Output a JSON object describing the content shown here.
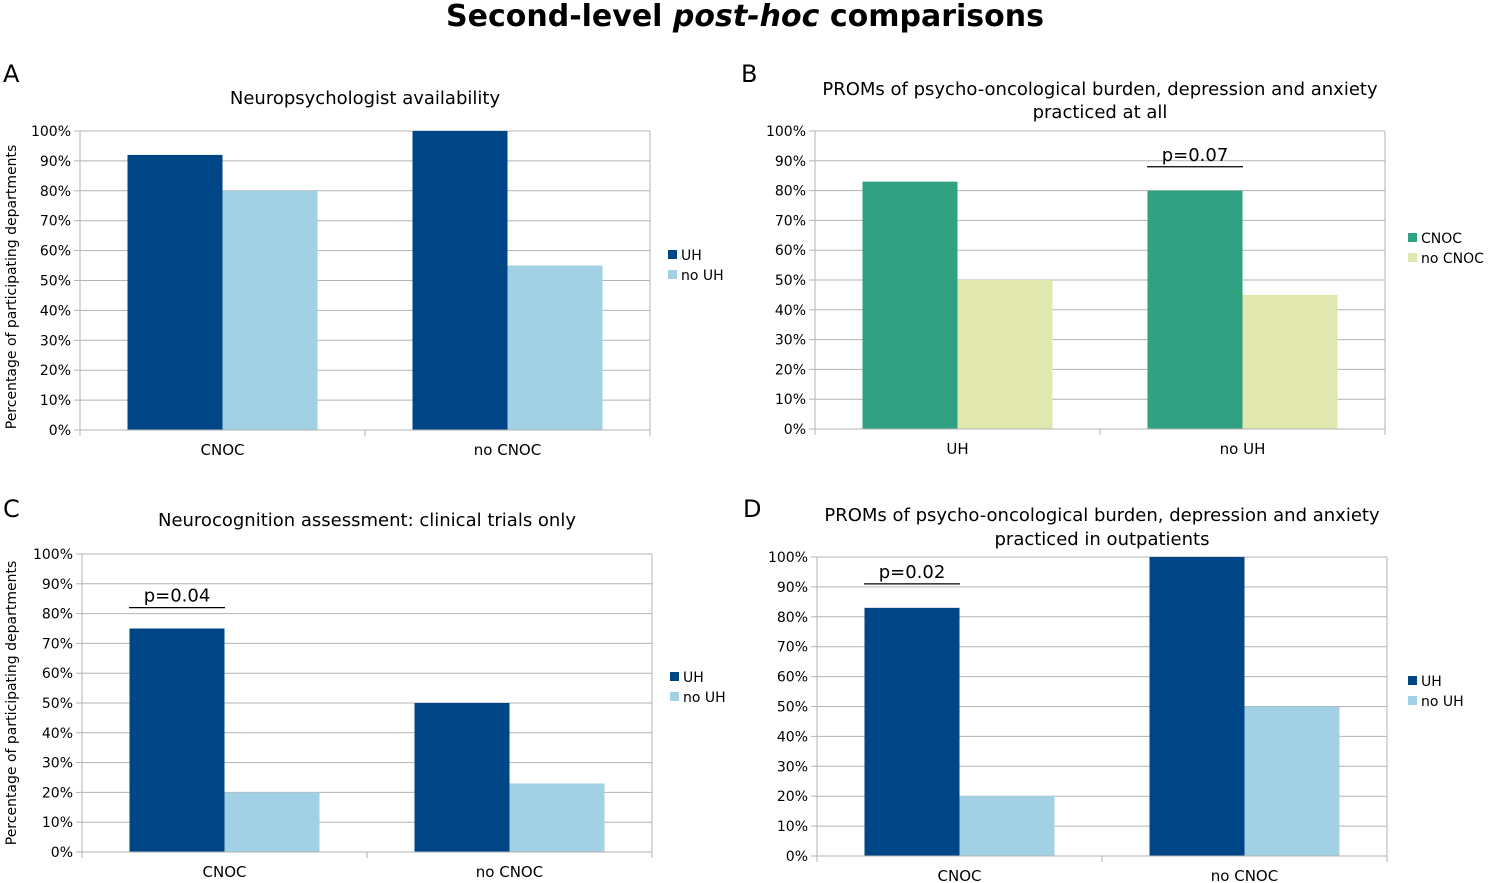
{
  "figure": {
    "title_parts": [
      "Second-level ",
      "post-hoc",
      " comparisons"
    ]
  },
  "colors": {
    "uh": "#004586",
    "no_uh": "#a2d0e5",
    "cnoc": "#30a282",
    "no_cnoc": "#e0e8b0",
    "grid": "#b3b3b3",
    "axis": "#b3b3b3"
  },
  "chart_data": [
    {
      "panel": "A",
      "type": "bar",
      "title": [
        "Neuropsychologist availability"
      ],
      "categories": [
        "CNOC",
        "no CNOC"
      ],
      "series": [
        {
          "name": "UH",
          "color_key": "uh",
          "values": [
            92,
            100
          ]
        },
        {
          "name": "no UH",
          "color_key": "no_uh",
          "values": [
            80,
            55
          ]
        }
      ],
      "ylabel": "Percentage of participating departments",
      "ylim": [
        0,
        100
      ],
      "yticks": [
        "0%",
        "10%",
        "20%",
        "30%",
        "40%",
        "50%",
        "60%",
        "70%",
        "80%",
        "90%",
        "100%"
      ],
      "grid": true,
      "legend": "right",
      "annotations": []
    },
    {
      "panel": "B",
      "type": "bar",
      "title": [
        "PROMs of psycho-oncological burden, depression and anxiety",
        "practiced at all"
      ],
      "categories": [
        "UH",
        "no UH"
      ],
      "series": [
        {
          "name": "CNOC",
          "color_key": "cnoc",
          "values": [
            83,
            80
          ]
        },
        {
          "name": "no CNOC",
          "color_key": "no_cnoc",
          "values": [
            50,
            45
          ]
        }
      ],
      "ylabel": "",
      "ylim": [
        0,
        100
      ],
      "yticks": [
        "0%",
        "10%",
        "20%",
        "30%",
        "40%",
        "50%",
        "60%",
        "70%",
        "80%",
        "90%",
        "100%"
      ],
      "grid": true,
      "legend": "right",
      "annotations": [
        {
          "text": "p=0.07",
          "category_index": 1,
          "y": 88
        }
      ]
    },
    {
      "panel": "C",
      "type": "bar",
      "title": [
        "Neurocognition assessment: clinical trials only"
      ],
      "categories": [
        "CNOC",
        "no CNOC"
      ],
      "series": [
        {
          "name": "UH",
          "color_key": "uh",
          "values": [
            75,
            50
          ]
        },
        {
          "name": "no UH",
          "color_key": "no_uh",
          "values": [
            20,
            23
          ]
        }
      ],
      "ylabel": "Percentage of participating departments",
      "ylim": [
        0,
        100
      ],
      "yticks": [
        "0%",
        "10%",
        "20%",
        "30%",
        "40%",
        "50%",
        "60%",
        "70%",
        "80%",
        "90%",
        "100%"
      ],
      "grid": true,
      "legend": "right",
      "annotations": [
        {
          "text": "p=0.04",
          "category_index": 0,
          "y": 82
        }
      ]
    },
    {
      "panel": "D",
      "type": "bar",
      "title": [
        "PROMs of psycho-oncological burden, depression and anxiety",
        "practiced in outpatients"
      ],
      "categories": [
        "CNOC",
        "no CNOC"
      ],
      "series": [
        {
          "name": "UH",
          "color_key": "uh",
          "values": [
            83,
            100
          ]
        },
        {
          "name": "no UH",
          "color_key": "no_uh",
          "values": [
            20,
            50
          ]
        }
      ],
      "ylabel": "",
      "ylim": [
        0,
        100
      ],
      "yticks": [
        "0%",
        "10%",
        "20%",
        "30%",
        "40%",
        "50%",
        "60%",
        "70%",
        "80%",
        "90%",
        "100%"
      ],
      "grid": true,
      "legend": "right",
      "annotations": [
        {
          "text": "p=0.02",
          "category_index": 0,
          "y": 91
        }
      ]
    }
  ]
}
